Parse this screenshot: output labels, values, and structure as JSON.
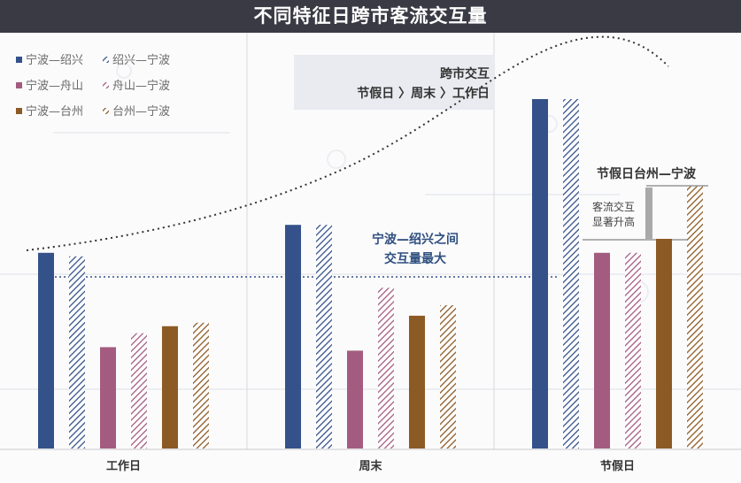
{
  "title": "不同特征日跨市客流交互量",
  "chart_data": {
    "type": "bar",
    "categories": [
      "工作日",
      "周末",
      "节假日"
    ],
    "ylim": [
      0,
      100
    ],
    "series": [
      {
        "name": "宁波—绍兴",
        "color": "#34518a",
        "pattern": "solid",
        "values": [
          56,
          64,
          100
        ]
      },
      {
        "name": "绍兴—宁波",
        "color": "#34518a",
        "pattern": "hatched",
        "values": [
          55,
          64,
          100
        ]
      },
      {
        "name": "宁波—舟山",
        "color": "#a35c7f",
        "pattern": "solid",
        "values": [
          29,
          28,
          56
        ]
      },
      {
        "name": "舟山—宁波",
        "color": "#a35c7f",
        "pattern": "hatched",
        "values": [
          33,
          46,
          56
        ]
      },
      {
        "name": "宁波—台州",
        "color": "#8c5a25",
        "pattern": "solid",
        "values": [
          35,
          38,
          60
        ]
      },
      {
        "name": "台州—宁波",
        "color": "#8c5a25",
        "pattern": "hatched",
        "values": [
          36,
          41,
          75
        ]
      }
    ],
    "annotations": {
      "trend_title": "跨市交互",
      "trend_order": "节假日 〉周末 〉工作日",
      "max_pair_line1": "宁波—绍兴之间",
      "max_pair_line2": "交互量最大",
      "holiday_label": "节假日台州—宁波",
      "increase_line1": "客流交互",
      "increase_line2": "显著升高"
    },
    "grid": false,
    "legend_position": "top-left"
  }
}
